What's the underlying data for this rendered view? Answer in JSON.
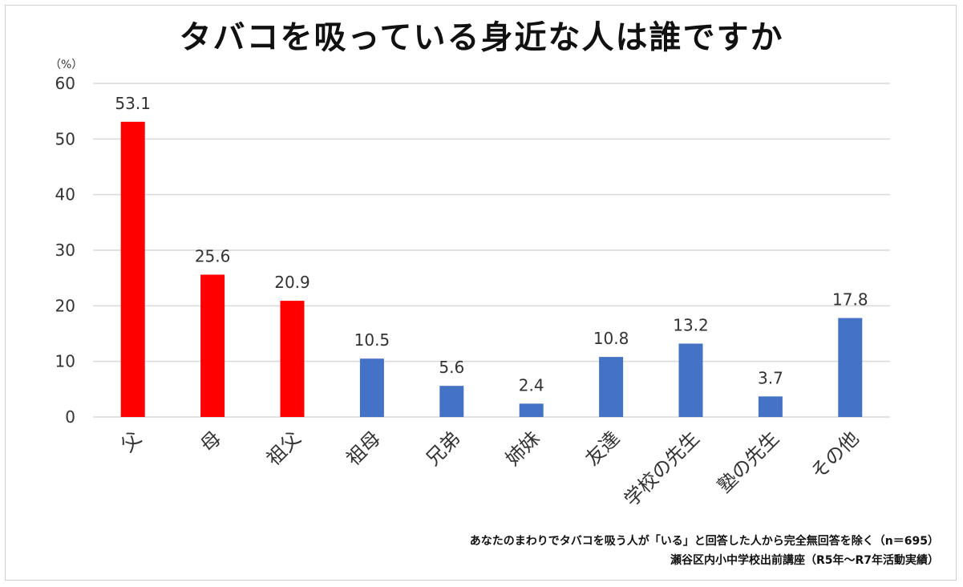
{
  "chart_data": {
    "type": "bar",
    "title": "タバコを吸っている身近な人は誰ですか",
    "ylabel": "（%）",
    "xlabel": "",
    "categories": [
      "父",
      "母",
      "祖父",
      "祖母",
      "兄弟",
      "姉妹",
      "友達",
      "学校の先生",
      "塾の先生",
      "その他"
    ],
    "values": [
      53.1,
      25.6,
      20.9,
      10.5,
      5.6,
      2.4,
      10.8,
      13.2,
      3.7,
      17.8
    ],
    "bar_colors": [
      "#ff0000",
      "#ff0000",
      "#ff0000",
      "#4472c4",
      "#4472c4",
      "#4472c4",
      "#4472c4",
      "#4472c4",
      "#4472c4",
      "#4472c4"
    ],
    "ylim": [
      0,
      60
    ],
    "yticks": [
      0,
      10,
      20,
      30,
      40,
      50,
      60
    ],
    "grid": true,
    "data_labels": true,
    "notes": [
      "あなたのまわりでタバコを吸う人が「いる」と回答した人から完全無回答を除く（n＝695）",
      "瀬谷区内小中学校出前講座（R5年～R7年活動実績）"
    ]
  }
}
